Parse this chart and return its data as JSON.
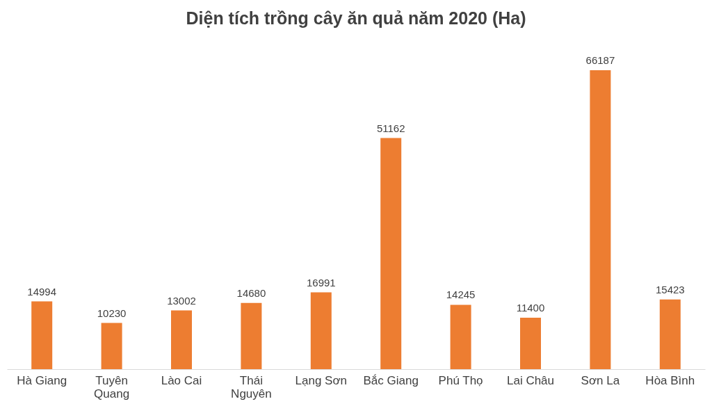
{
  "chart_data": {
    "type": "bar",
    "title": "Diện tích trồng cây ăn quả năm 2020 (Ha)",
    "categories": [
      "Hà Giang",
      "Tuyên Quang",
      "Lào Cai",
      "Thái Nguyên",
      "Lạng Sơn",
      "Bắc Giang",
      "Phú Thọ",
      "Lai Châu",
      "Sơn La",
      "Hòa Bình"
    ],
    "values": [
      14994,
      10230,
      13002,
      14680,
      16991,
      51162,
      14245,
      11400,
      66187,
      15423
    ],
    "color": "#ed7d31",
    "data_labels": true
  }
}
